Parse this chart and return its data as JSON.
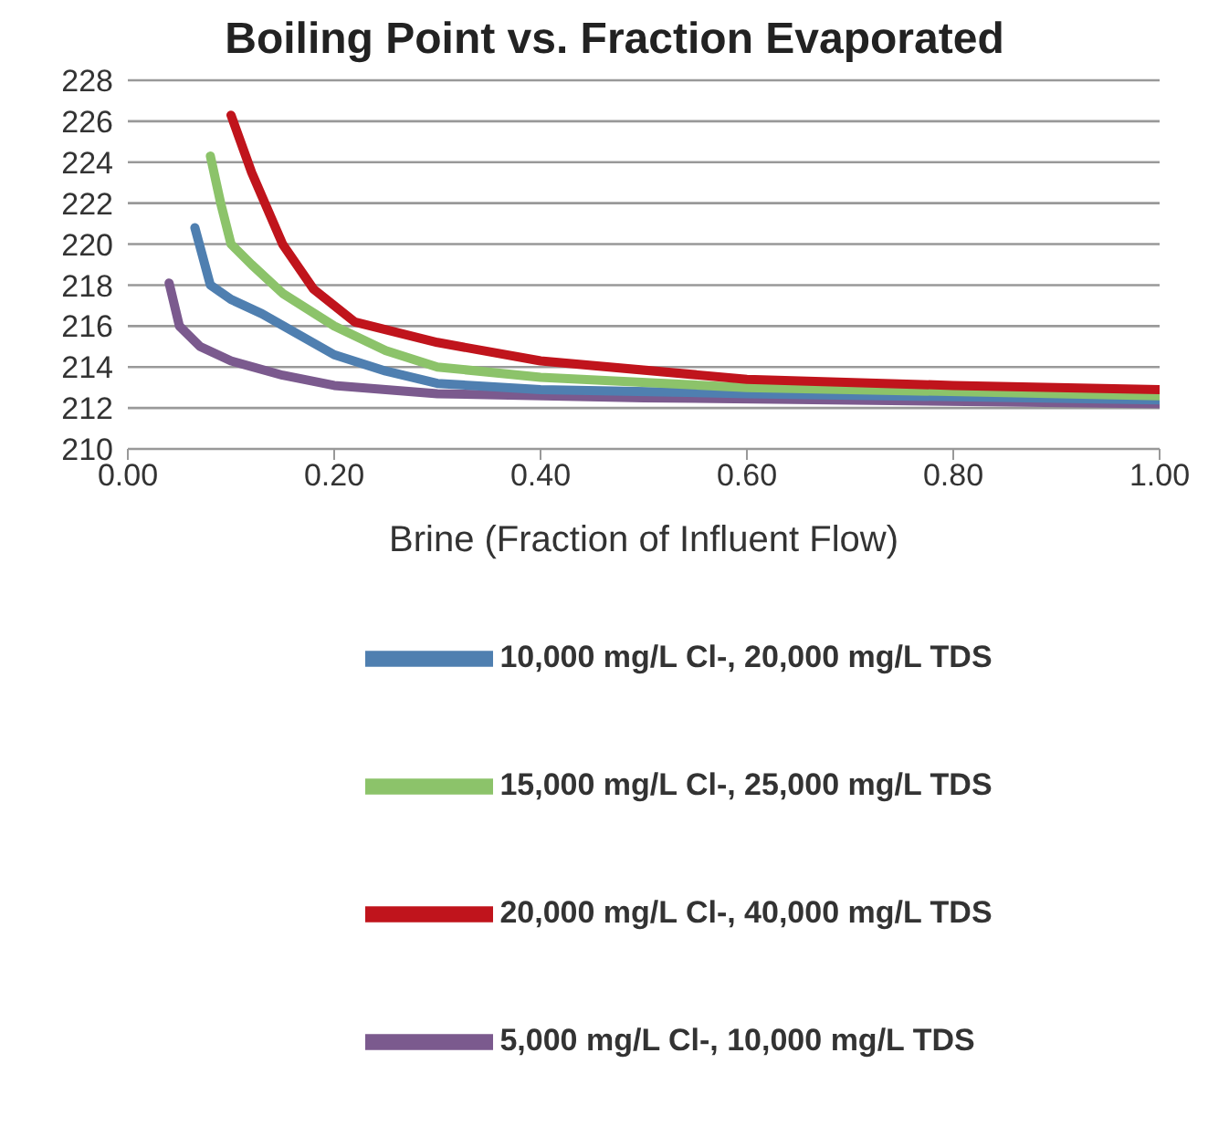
{
  "chart_data": {
    "type": "line",
    "title": "Boiling Point vs. Fraction Evaporated",
    "xlabel": "Brine (Fraction of Influent Flow)",
    "xlim": [
      0,
      1
    ],
    "xticks": [
      {
        "value": 0,
        "label": "0.00"
      },
      {
        "value": 0.2,
        "label": "0.20"
      },
      {
        "value": 0.4,
        "label": "0.40"
      },
      {
        "value": 0.6,
        "label": "0.60"
      },
      {
        "value": 0.8,
        "label": "0.80"
      },
      {
        "value": 1,
        "label": "1.00"
      }
    ],
    "ylim": [
      210,
      228
    ],
    "yticks": [
      210,
      212,
      214,
      216,
      218,
      220,
      222,
      224,
      226,
      228
    ],
    "grid": "y",
    "legend": "bottom",
    "marker": "none",
    "line_style": "solid",
    "series": [
      {
        "name": "5,000 mg/L Cl-, 10,000 mg/L TDS",
        "color": "#7b5a8e",
        "x": [
          0.04,
          0.05,
          0.07,
          0.1,
          0.15,
          0.2,
          0.3,
          0.5,
          1.0
        ],
        "values": [
          218.1,
          216,
          215,
          214.3,
          213.6,
          213.1,
          212.7,
          212.5,
          212.2
        ]
      },
      {
        "name": "10,000 mg/L Cl-, 20,000 mg/L TDS",
        "color": "#4f7fb0",
        "x": [
          0.065,
          0.08,
          0.1,
          0.13,
          0.2,
          0.25,
          0.3,
          0.4,
          0.6,
          1.0
        ],
        "values": [
          220.8,
          218,
          217.3,
          216.6,
          214.6,
          213.8,
          213.2,
          212.9,
          212.7,
          212.4
        ]
      },
      {
        "name": "15,000 mg/L Cl-, 25,000 mg/L TDS",
        "color": "#8cc36a",
        "x": [
          0.08,
          0.09,
          0.1,
          0.12,
          0.15,
          0.2,
          0.25,
          0.3,
          0.4,
          0.6,
          1.0
        ],
        "values": [
          224.3,
          222,
          220,
          219,
          217.6,
          216,
          214.8,
          214,
          213.5,
          213,
          212.6
        ]
      },
      {
        "name": "20,000 mg/L Cl-, 40,000 mg/L TDS",
        "color": "#c0141c",
        "x": [
          0.1,
          0.12,
          0.15,
          0.18,
          0.22,
          0.3,
          0.4,
          0.6,
          0.8,
          1.0
        ],
        "values": [
          226.3,
          223.5,
          220,
          217.8,
          216.2,
          215.2,
          214.3,
          213.4,
          213.1,
          212.9
        ]
      }
    ]
  }
}
